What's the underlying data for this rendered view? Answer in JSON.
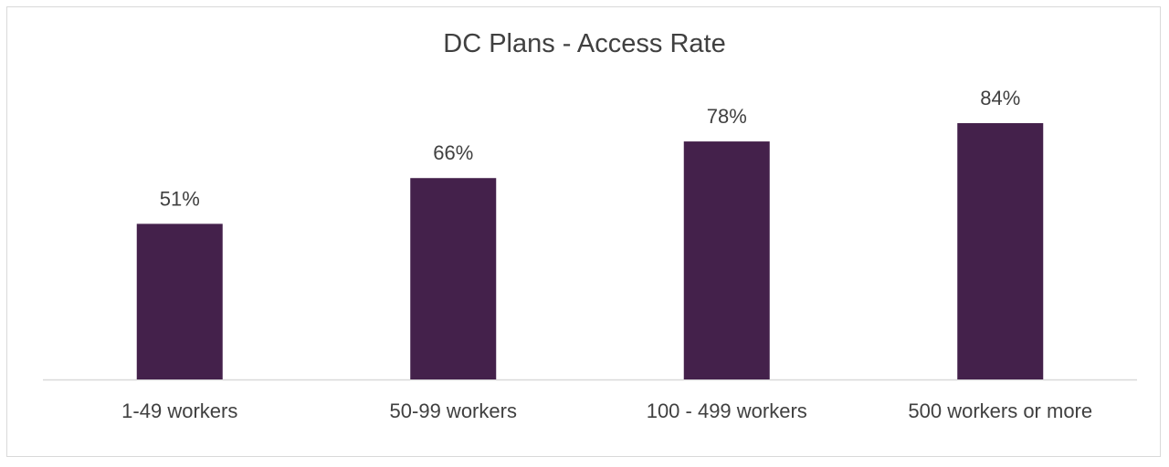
{
  "chart_data": {
    "type": "bar",
    "title": "DC Plans - Access Rate",
    "categories": [
      "1-49 workers",
      "50-99 workers",
      "100 - 499 workers",
      "500 workers or more"
    ],
    "values": [
      51,
      66,
      78,
      84
    ],
    "data_labels": [
      "51%",
      "66%",
      "78%",
      "84%"
    ],
    "ylim": [
      0,
      100
    ],
    "xlabel": "",
    "ylabel": "",
    "grid": false,
    "legend": "none",
    "colors": {
      "bar": "#44214B",
      "axis": "#d9d9d9",
      "text": "#404040"
    }
  }
}
